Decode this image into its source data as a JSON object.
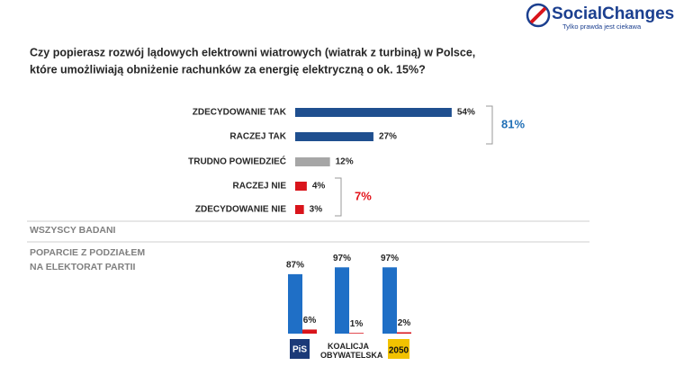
{
  "header": {
    "brand": "SocialChanges",
    "tagline": "Tylko prawda jest ciekawa"
  },
  "chart_data": [
    {
      "type": "hbar",
      "title": [
        "Czy popierasz rozwój lądowych elektrowni wiatrowych (wiatrak z turbiną) w Polsce,",
        "które umożliwiają obniżenie rachunków za energię elektryczną o ok. 15%?"
      ],
      "subtitle": "WSZYSCY BADANI",
      "categories": [
        "ZDECYDOWANIE TAK",
        "RACZEJ TAK",
        "TRUDNO POWIEDZIEĆ",
        "RACZEJ NIE",
        "ZDECYDOWANIE NIE"
      ],
      "values": [
        54,
        27,
        12,
        4,
        3
      ],
      "value_labels": [
        "54%",
        "27%",
        "12%",
        "4%",
        "3%"
      ],
      "colors": [
        "#1f4f8f",
        "#1f4f8f",
        "#a6a6a6",
        "#d9141b",
        "#d9141b"
      ],
      "annotations": [
        {
          "text": "81%",
          "color": "#1f6fb6"
        },
        {
          "text": "7%",
          "color": "#e3141b"
        }
      ]
    },
    {
      "type": "bar",
      "title": [
        "POPARCIE Z PODZIAŁEM",
        "NA ELEKTORAT PARTII"
      ],
      "categories": [
        "PiS",
        "KOALICJA OBYWATELSKA",
        "2050"
      ],
      "series": [
        {
          "color": "#1f6fc6",
          "values": [
            87,
            97,
            97
          ],
          "value_labels": [
            "87%",
            "97%",
            "97%"
          ]
        },
        {
          "color": "#d9141b",
          "values": [
            6,
            1,
            2
          ],
          "value_labels": [
            "6%",
            "1%",
            "2%"
          ]
        }
      ]
    }
  ]
}
